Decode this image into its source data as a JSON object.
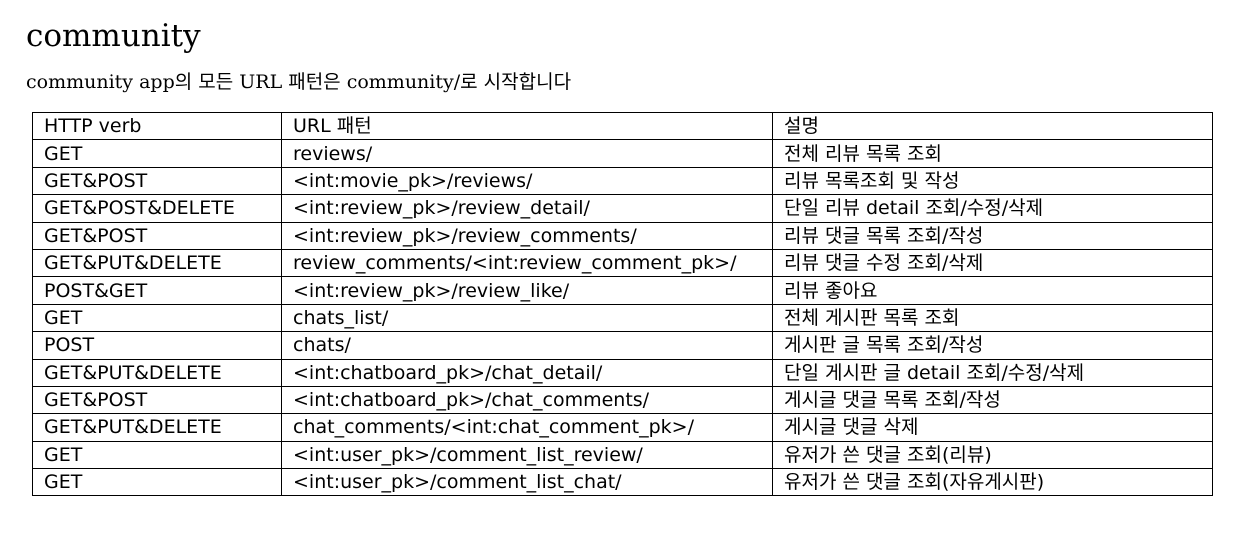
{
  "title": "community",
  "subtitle": "community app의 모든 URL 패턴은 community/로 시작합니다",
  "table": {
    "headers": [
      "HTTP verb",
      "URL 패턴",
      "설명"
    ],
    "rows": [
      [
        "GET",
        "reviews/",
        "전체 리뷰 목록 조회"
      ],
      [
        "GET&POST",
        "<int:movie_pk>/reviews/",
        "리뷰 목록조회 및 작성"
      ],
      [
        "GET&POST&DELETE",
        "<int:review_pk>/review_detail/",
        "단일 리뷰 detail 조회/수정/삭제"
      ],
      [
        "GET&POST",
        "<int:review_pk>/review_comments/",
        "리뷰 댓글 목록 조회/작성"
      ],
      [
        "GET&PUT&DELETE",
        "review_comments/<int:review_comment_pk>/",
        "리뷰 댓글 수정 조회/삭제"
      ],
      [
        "POST&GET",
        "<int:review_pk>/review_like/",
        "리뷰 좋아요"
      ],
      [
        "GET",
        "chats_list/",
        "전체 게시판 목록 조회"
      ],
      [
        "POST",
        "chats/",
        "게시판 글 목록 조회/작성"
      ],
      [
        "GET&PUT&DELETE",
        "<int:chatboard_pk>/chat_detail/",
        "단일 게시판 글 detail 조회/수정/삭제"
      ],
      [
        "GET&POST",
        "<int:chatboard_pk>/chat_comments/",
        "게시글 댓글 목록 조회/작성"
      ],
      [
        "GET&PUT&DELETE",
        "chat_comments/<int:chat_comment_pk>/",
        "게시글 댓글 삭제"
      ],
      [
        "GET",
        "<int:user_pk>/comment_list_review/",
        "유저가 쓴 댓글 조회(리뷰)"
      ],
      [
        "GET",
        "<int:user_pk>/comment_list_chat/",
        "유저가 쓴 댓글 조회(자유게시판)"
      ]
    ]
  }
}
